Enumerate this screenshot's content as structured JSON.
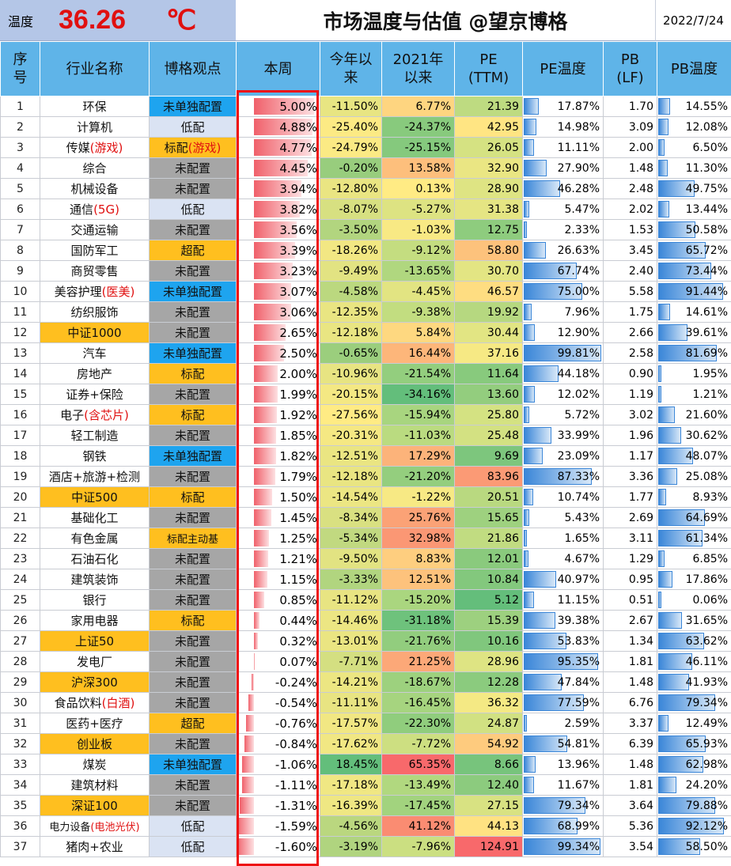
{
  "header": {
    "temp_label": "温度",
    "temp_value": "36.26",
    "temp_unit": "℃",
    "title": "市场温度与估值 @望京博格",
    "date": "2022/7/24"
  },
  "columns": [
    "序号",
    "行业名称",
    "博格观点",
    "本周",
    "今年以来",
    "2021年以来",
    "PE (TTM)",
    "PE温度",
    "PB (LF)",
    "PB温度"
  ],
  "rows": [
    {
      "idx": "1",
      "name": "环保",
      "name_red": "",
      "view": "未单独配置",
      "view_red": "",
      "week": "5.00%",
      "week_v": 5.0,
      "ytd": "-11.50%",
      "since2021": "6.77%",
      "pe": "21.39",
      "pe_temp": "17.87%",
      "pe_t": 17.87,
      "pb": "1.70",
      "pb_temp": "14.55%",
      "pb_t": 14.55
    },
    {
      "idx": "2",
      "name": "计算机",
      "name_red": "",
      "view": "低配",
      "view_red": "",
      "week": "4.88%",
      "week_v": 4.88,
      "ytd": "-25.40%",
      "since2021": "-24.37%",
      "pe": "42.95",
      "pe_temp": "14.98%",
      "pe_t": 14.98,
      "pb": "3.09",
      "pb_temp": "12.08%",
      "pb_t": 12.08
    },
    {
      "idx": "3",
      "name": "传媒",
      "name_red": "(游戏)",
      "view": "标配",
      "view_red": "(游戏)",
      "week": "4.77%",
      "week_v": 4.77,
      "ytd": "-24.79%",
      "since2021": "-25.15%",
      "pe": "26.05",
      "pe_temp": "11.11%",
      "pe_t": 11.11,
      "pb": "2.00",
      "pb_temp": "6.50%",
      "pb_t": 6.5
    },
    {
      "idx": "4",
      "name": "综合",
      "name_red": "",
      "view": "未配置",
      "view_red": "",
      "week": "4.45%",
      "week_v": 4.45,
      "ytd": "-0.20%",
      "since2021": "13.58%",
      "pe": "32.90",
      "pe_temp": "27.90%",
      "pe_t": 27.9,
      "pb": "1.48",
      "pb_temp": "11.30%",
      "pb_t": 11.3
    },
    {
      "idx": "5",
      "name": "机械设备",
      "name_red": "",
      "view": "未配置",
      "view_red": "",
      "week": "3.94%",
      "week_v": 3.94,
      "ytd": "-12.80%",
      "since2021": "0.13%",
      "pe": "28.90",
      "pe_temp": "46.28%",
      "pe_t": 46.28,
      "pb": "2.48",
      "pb_temp": "49.75%",
      "pb_t": 49.75
    },
    {
      "idx": "6",
      "name": "通信",
      "name_red": "(5G)",
      "view": "低配",
      "view_red": "",
      "week": "3.82%",
      "week_v": 3.82,
      "ytd": "-8.07%",
      "since2021": "-5.27%",
      "pe": "31.38",
      "pe_temp": "5.47%",
      "pe_t": 5.47,
      "pb": "2.02",
      "pb_temp": "13.44%",
      "pb_t": 13.44
    },
    {
      "idx": "7",
      "name": "交通运输",
      "name_red": "",
      "view": "未配置",
      "view_red": "",
      "week": "3.56%",
      "week_v": 3.56,
      "ytd": "-3.50%",
      "since2021": "-1.03%",
      "pe": "12.75",
      "pe_temp": "2.33%",
      "pe_t": 2.33,
      "pb": "1.53",
      "pb_temp": "50.58%",
      "pb_t": 50.58
    },
    {
      "idx": "8",
      "name": "国防军工",
      "name_red": "",
      "view": "超配",
      "view_red": "",
      "week": "3.39%",
      "week_v": 3.39,
      "ytd": "-18.26%",
      "since2021": "-9.12%",
      "pe": "58.80",
      "pe_temp": "26.63%",
      "pe_t": 26.63,
      "pb": "3.45",
      "pb_temp": "65.72%",
      "pb_t": 65.72
    },
    {
      "idx": "9",
      "name": "商贸零售",
      "name_red": "",
      "view": "未配置",
      "view_red": "",
      "week": "3.23%",
      "week_v": 3.23,
      "ytd": "-9.49%",
      "since2021": "-13.65%",
      "pe": "30.70",
      "pe_temp": "67.74%",
      "pe_t": 67.74,
      "pb": "2.40",
      "pb_temp": "73.44%",
      "pb_t": 73.44
    },
    {
      "idx": "10",
      "name": "美容护理",
      "name_red": "(医美)",
      "view": "未单独配置",
      "view_red": "",
      "week": "3.07%",
      "week_v": 3.07,
      "ytd": "-4.58%",
      "since2021": "-4.45%",
      "pe": "46.57",
      "pe_temp": "75.00%",
      "pe_t": 75.0,
      "pb": "5.58",
      "pb_temp": "91.44%",
      "pb_t": 91.44
    },
    {
      "idx": "11",
      "name": "纺织服饰",
      "name_red": "",
      "view": "未配置",
      "view_red": "",
      "week": "3.06%",
      "week_v": 3.06,
      "ytd": "-12.35%",
      "since2021": "-9.38%",
      "pe": "19.92",
      "pe_temp": "7.96%",
      "pe_t": 7.96,
      "pb": "1.75",
      "pb_temp": "14.61%",
      "pb_t": 14.61
    },
    {
      "idx": "12",
      "name": "中证1000",
      "name_red": "",
      "view": "未配置",
      "view_red": "",
      "week": "2.65%",
      "week_v": 2.65,
      "ytd": "-12.18%",
      "since2021": "5.84%",
      "pe": "30.44",
      "pe_temp": "12.90%",
      "pe_t": 12.9,
      "pb": "2.66",
      "pb_temp": "39.61%",
      "pb_t": 39.61
    },
    {
      "idx": "13",
      "name": "汽车",
      "name_red": "",
      "view": "未单独配置",
      "view_red": "",
      "week": "2.50%",
      "week_v": 2.5,
      "ytd": "-0.65%",
      "since2021": "16.44%",
      "pe": "37.16",
      "pe_temp": "99.81%",
      "pe_t": 99.81,
      "pb": "2.58",
      "pb_temp": "81.69%",
      "pb_t": 81.69
    },
    {
      "idx": "14",
      "name": "房地产",
      "name_red": "",
      "view": "标配",
      "view_red": "",
      "week": "2.00%",
      "week_v": 2.0,
      "ytd": "-10.96%",
      "since2021": "-21.54%",
      "pe": "11.64",
      "pe_temp": "44.18%",
      "pe_t": 44.18,
      "pb": "0.90",
      "pb_temp": "1.95%",
      "pb_t": 1.95
    },
    {
      "idx": "15",
      "name": "证券+保险",
      "name_red": "",
      "view": "未配置",
      "view_red": "",
      "week": "1.99%",
      "week_v": 1.99,
      "ytd": "-20.15%",
      "since2021": "-34.16%",
      "pe": "13.60",
      "pe_temp": "12.02%",
      "pe_t": 12.02,
      "pb": "1.19",
      "pb_temp": "1.21%",
      "pb_t": 1.21
    },
    {
      "idx": "16",
      "name": "电子",
      "name_red": "(含芯片)",
      "view": "标配",
      "view_red": "",
      "week": "1.92%",
      "week_v": 1.92,
      "ytd": "-27.56%",
      "since2021": "-15.94%",
      "pe": "25.80",
      "pe_temp": "5.72%",
      "pe_t": 5.72,
      "pb": "3.02",
      "pb_temp": "21.60%",
      "pb_t": 21.6
    },
    {
      "idx": "17",
      "name": "轻工制造",
      "name_red": "",
      "view": "未配置",
      "view_red": "",
      "week": "1.85%",
      "week_v": 1.85,
      "ytd": "-20.31%",
      "since2021": "-11.03%",
      "pe": "25.48",
      "pe_temp": "33.99%",
      "pe_t": 33.99,
      "pb": "1.96",
      "pb_temp": "30.62%",
      "pb_t": 30.62
    },
    {
      "idx": "18",
      "name": "钢铁",
      "name_red": "",
      "view": "未单独配置",
      "view_red": "",
      "week": "1.82%",
      "week_v": 1.82,
      "ytd": "-12.51%",
      "since2021": "17.29%",
      "pe": "9.69",
      "pe_temp": "23.09%",
      "pe_t": 23.09,
      "pb": "1.17",
      "pb_temp": "48.07%",
      "pb_t": 48.07
    },
    {
      "idx": "19",
      "name": "酒店+旅游+检测",
      "name_red": "",
      "view": "未配置",
      "view_red": "",
      "week": "1.79%",
      "week_v": 1.79,
      "ytd": "-12.18%",
      "since2021": "-21.20%",
      "pe": "83.96",
      "pe_temp": "87.33%",
      "pe_t": 87.33,
      "pb": "3.36",
      "pb_temp": "25.08%",
      "pb_t": 25.08
    },
    {
      "idx": "20",
      "name": "中证500",
      "name_red": "",
      "view": "标配",
      "view_red": "",
      "week": "1.50%",
      "week_v": 1.5,
      "ytd": "-14.54%",
      "since2021": "-1.22%",
      "pe": "20.51",
      "pe_temp": "10.74%",
      "pe_t": 10.74,
      "pb": "1.77",
      "pb_temp": "8.93%",
      "pb_t": 8.93
    },
    {
      "idx": "21",
      "name": "基础化工",
      "name_red": "",
      "view": "未配置",
      "view_red": "",
      "week": "1.45%",
      "week_v": 1.45,
      "ytd": "-8.34%",
      "since2021": "25.76%",
      "pe": "15.65",
      "pe_temp": "5.43%",
      "pe_t": 5.43,
      "pb": "2.69",
      "pb_temp": "64.69%",
      "pb_t": 64.69
    },
    {
      "idx": "22",
      "name": "有色金属",
      "name_red": "",
      "view": "标配主动基",
      "view_red": "",
      "week": "1.25%",
      "week_v": 1.25,
      "ytd": "-5.34%",
      "since2021": "32.98%",
      "pe": "21.86",
      "pe_temp": "1.65%",
      "pe_t": 1.65,
      "pb": "3.11",
      "pb_temp": "61.34%",
      "pb_t": 61.34
    },
    {
      "idx": "23",
      "name": "石油石化",
      "name_red": "",
      "view": "未配置",
      "view_red": "",
      "week": "1.21%",
      "week_v": 1.21,
      "ytd": "-9.50%",
      "since2021": "8.83%",
      "pe": "12.01",
      "pe_temp": "4.67%",
      "pe_t": 4.67,
      "pb": "1.29",
      "pb_temp": "6.85%",
      "pb_t": 6.85
    },
    {
      "idx": "24",
      "name": "建筑装饰",
      "name_red": "",
      "view": "未配置",
      "view_red": "",
      "week": "1.15%",
      "week_v": 1.15,
      "ytd": "-3.33%",
      "since2021": "12.51%",
      "pe": "10.84",
      "pe_temp": "40.97%",
      "pe_t": 40.97,
      "pb": "0.95",
      "pb_temp": "17.86%",
      "pb_t": 17.86
    },
    {
      "idx": "25",
      "name": "银行",
      "name_red": "",
      "view": "未配置",
      "view_red": "",
      "week": "0.85%",
      "week_v": 0.85,
      "ytd": "-11.12%",
      "since2021": "-15.20%",
      "pe": "5.12",
      "pe_temp": "11.15%",
      "pe_t": 11.15,
      "pb": "0.51",
      "pb_temp": "0.06%",
      "pb_t": 0.06
    },
    {
      "idx": "26",
      "name": "家用电器",
      "name_red": "",
      "view": "标配",
      "view_red": "",
      "week": "0.44%",
      "week_v": 0.44,
      "ytd": "-14.46%",
      "since2021": "-31.18%",
      "pe": "15.39",
      "pe_temp": "39.38%",
      "pe_t": 39.38,
      "pb": "2.67",
      "pb_temp": "31.65%",
      "pb_t": 31.65
    },
    {
      "idx": "27",
      "name": "上证50",
      "name_red": "",
      "view": "未配置",
      "view_red": "",
      "week": "0.32%",
      "week_v": 0.32,
      "ytd": "-13.01%",
      "since2021": "-21.76%",
      "pe": "10.16",
      "pe_temp": "53.83%",
      "pe_t": 53.83,
      "pb": "1.34",
      "pb_temp": "63.62%",
      "pb_t": 63.62
    },
    {
      "idx": "28",
      "name": "发电厂",
      "name_red": "",
      "view": "未配置",
      "view_red": "",
      "week": "0.07%",
      "week_v": 0.07,
      "ytd": "-7.71%",
      "since2021": "21.25%",
      "pe": "28.96",
      "pe_temp": "95.35%",
      "pe_t": 95.35,
      "pb": "1.81",
      "pb_temp": "46.11%",
      "pb_t": 46.11
    },
    {
      "idx": "29",
      "name": "沪深300",
      "name_red": "",
      "view": "未配置",
      "view_red": "",
      "week": "-0.24%",
      "week_v": -0.24,
      "ytd": "-14.21%",
      "since2021": "-18.67%",
      "pe": "12.28",
      "pe_temp": "47.84%",
      "pe_t": 47.84,
      "pb": "1.48",
      "pb_temp": "41.93%",
      "pb_t": 41.93
    },
    {
      "idx": "30",
      "name": "食品饮料",
      "name_red": "(白酒)",
      "view": "未配置",
      "view_red": "",
      "week": "-0.54%",
      "week_v": -0.54,
      "ytd": "-11.11%",
      "since2021": "-16.45%",
      "pe": "36.32",
      "pe_temp": "77.59%",
      "pe_t": 77.59,
      "pb": "6.76",
      "pb_temp": "79.34%",
      "pb_t": 79.34
    },
    {
      "idx": "31",
      "name": "医药+医疗",
      "name_red": "",
      "view": "超配",
      "view_red": "",
      "week": "-0.76%",
      "week_v": -0.76,
      "ytd": "-17.57%",
      "since2021": "-22.30%",
      "pe": "24.87",
      "pe_temp": "2.59%",
      "pe_t": 2.59,
      "pb": "3.37",
      "pb_temp": "12.49%",
      "pb_t": 12.49
    },
    {
      "idx": "32",
      "name": "创业板",
      "name_red": "",
      "view": "未配置",
      "view_red": "",
      "week": "-0.84%",
      "week_v": -0.84,
      "ytd": "-17.62%",
      "since2021": "-7.72%",
      "pe": "54.92",
      "pe_temp": "54.81%",
      "pe_t": 54.81,
      "pb": "6.39",
      "pb_temp": "65.93%",
      "pb_t": 65.93
    },
    {
      "idx": "33",
      "name": "煤炭",
      "name_red": "",
      "view": "未单独配置",
      "view_red": "",
      "week": "-1.06%",
      "week_v": -1.06,
      "ytd": "18.45%",
      "since2021": "65.35%",
      "pe": "8.66",
      "pe_temp": "13.96%",
      "pe_t": 13.96,
      "pb": "1.48",
      "pb_temp": "62.98%",
      "pb_t": 62.98
    },
    {
      "idx": "34",
      "name": "建筑材料",
      "name_red": "",
      "view": "未配置",
      "view_red": "",
      "week": "-1.11%",
      "week_v": -1.11,
      "ytd": "-17.18%",
      "since2021": "-13.49%",
      "pe": "12.40",
      "pe_temp": "11.67%",
      "pe_t": 11.67,
      "pb": "1.81",
      "pb_temp": "24.20%",
      "pb_t": 24.2
    },
    {
      "idx": "35",
      "name": "深证100",
      "name_red": "",
      "view": "未配置",
      "view_red": "",
      "week": "-1.31%",
      "week_v": -1.31,
      "ytd": "-16.39%",
      "since2021": "-17.45%",
      "pe": "27.15",
      "pe_temp": "79.34%",
      "pe_t": 79.34,
      "pb": "3.64",
      "pb_temp": "79.88%",
      "pb_t": 79.88
    },
    {
      "idx": "36",
      "name": "电力设备",
      "name_red": "(电池光伏)",
      "view": "低配",
      "view_red": "",
      "week": "-1.59%",
      "week_v": -1.59,
      "ytd": "-4.56%",
      "since2021": "41.12%",
      "pe": "44.13",
      "pe_temp": "68.99%",
      "pe_t": 68.99,
      "pb": "5.36",
      "pb_temp": "92.12%",
      "pb_t": 92.12
    },
    {
      "idx": "37",
      "name": "猪肉+农业",
      "name_red": "",
      "view": "低配",
      "view_red": "",
      "week": "-1.60%",
      "week_v": -1.6,
      "ytd": "-3.19%",
      "since2021": "-7.96%",
      "pe": "124.91",
      "pe_temp": "99.34%",
      "pe_t": 99.34,
      "pb": "3.54",
      "pb_temp": "58.50%",
      "pb_t": 58.5
    }
  ],
  "colors": {
    "header_bg": "#5fb4e8",
    "temp_bg": "#b4c6e7",
    "temp_text": "#e01010",
    "index_highlight": "#ffbf1f",
    "view_blue": "#1ea4ef",
    "view_gray": "#a6a6a6",
    "view_gold": "#ffbf1f",
    "view_light": "#dae3f3",
    "week_bar": "#f0606a",
    "pe_bar": "#3a86d8",
    "highlight_box": "#ee1111"
  }
}
